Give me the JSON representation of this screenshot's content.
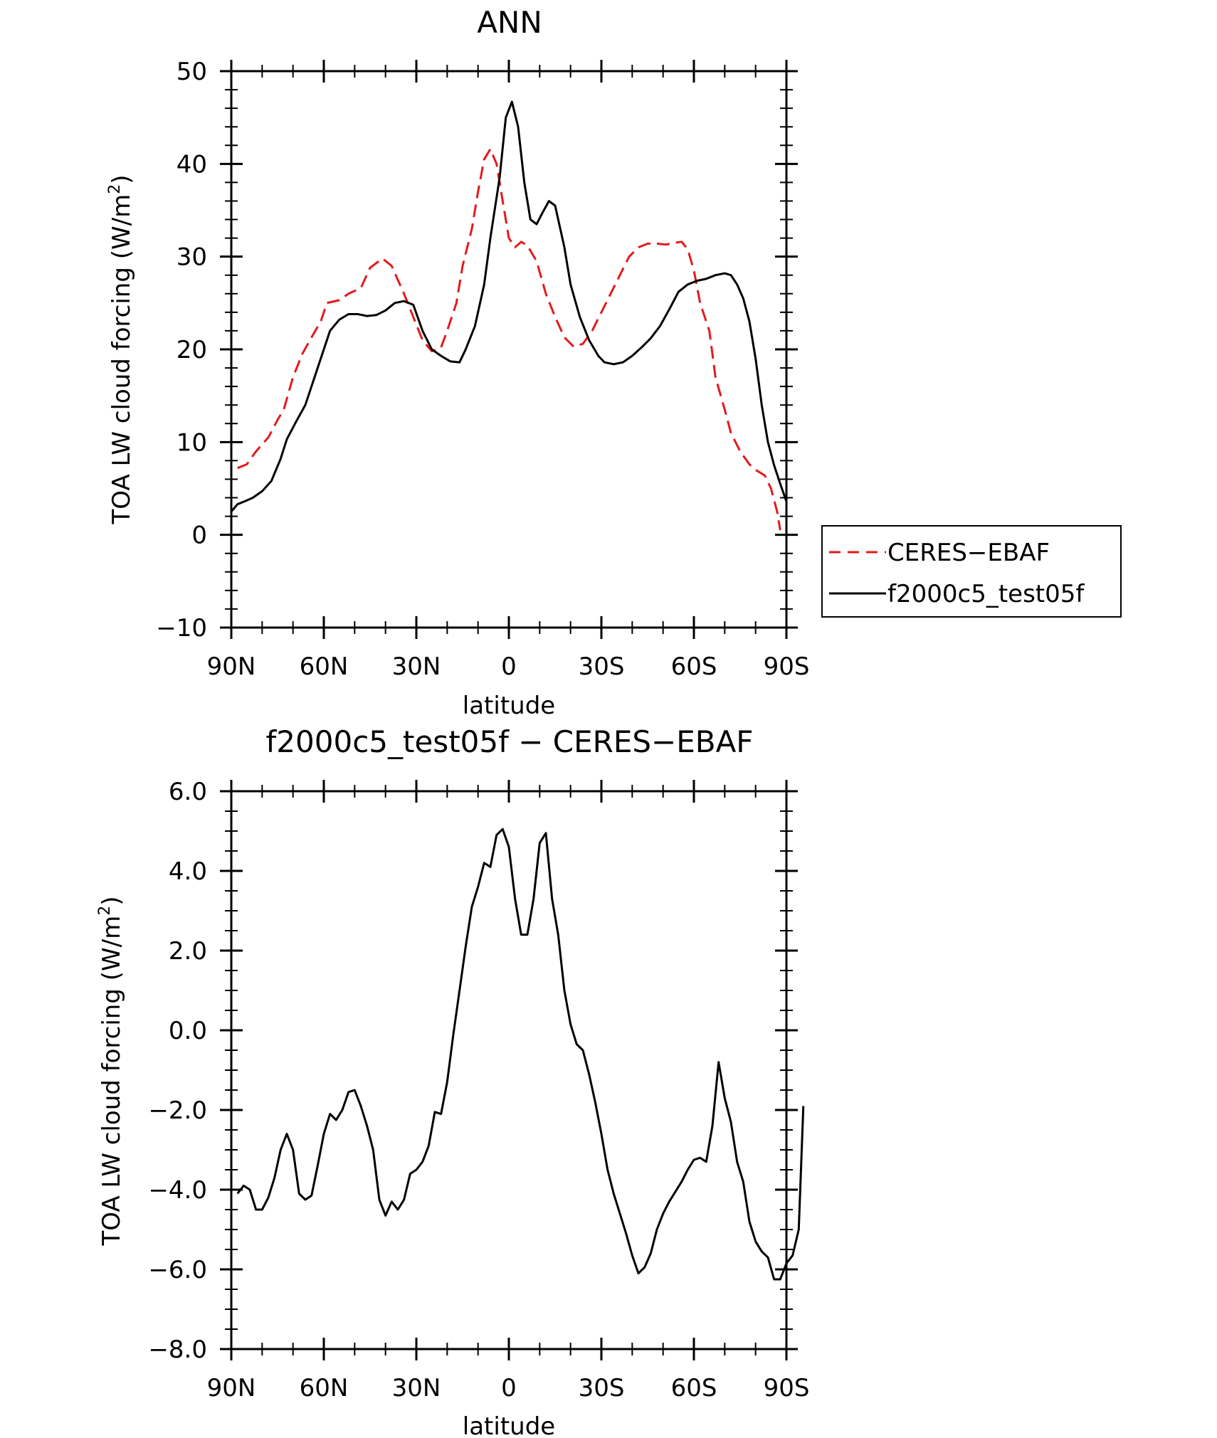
{
  "chart_data": [
    {
      "type": "line",
      "title": "ANN",
      "xlabel": "latitude",
      "ylabel": "TOA LW cloud forcing (W/m",
      "ylabel_sup": "2",
      "ylabel_end": ")",
      "xlim": [
        90,
        -90
      ],
      "ylim": [
        -10,
        50
      ],
      "xticks": [
        90,
        60,
        30,
        0,
        -30,
        -60,
        -90
      ],
      "xtick_labels": [
        "90N",
        "60N",
        "30N",
        "0",
        "30S",
        "60S",
        "90S"
      ],
      "yticks": [
        -10,
        0,
        10,
        20,
        30,
        40,
        50
      ],
      "ytick_labels": [
        "−10",
        "0",
        "10",
        "20",
        "30",
        "40",
        "50"
      ],
      "legend_position": "right",
      "series": [
        {
          "name": "CERES−EBAF",
          "color": "#e41a1c",
          "dash": "dashed",
          "points": [
            [
              88,
              7.2
            ],
            [
              85,
              7.6
            ],
            [
              82,
              9.0
            ],
            [
              78,
              10.5
            ],
            [
              75,
              12.4
            ],
            [
              73,
              13.5
            ],
            [
              70,
              17.0
            ],
            [
              67,
              19.5
            ],
            [
              64,
              21.3
            ],
            [
              61,
              23.0
            ],
            [
              59,
              25.0
            ],
            [
              55,
              25.3
            ],
            [
              52,
              26.0
            ],
            [
              48,
              26.6
            ],
            [
              45,
              28.8
            ],
            [
              41,
              29.8
            ],
            [
              38,
              29.0
            ],
            [
              34,
              26.0
            ],
            [
              31,
              23.5
            ],
            [
              28,
              21.0
            ],
            [
              25,
              19.8
            ],
            [
              22,
              20.2
            ],
            [
              20,
              22.0
            ],
            [
              17,
              25.0
            ],
            [
              15,
              29.0
            ],
            [
              12,
              33.0
            ],
            [
              10,
              37.0
            ],
            [
              8,
              40.5
            ],
            [
              6,
              41.6
            ],
            [
              4,
              40.0
            ],
            [
              2,
              36.0
            ],
            [
              0,
              32.0
            ],
            [
              -2,
              31.0
            ],
            [
              -4,
              31.6
            ],
            [
              -6,
              31.2
            ],
            [
              -9,
              29.5
            ],
            [
              -12,
              26.0
            ],
            [
              -15,
              23.5
            ],
            [
              -18,
              21.3
            ],
            [
              -21,
              20.3
            ],
            [
              -24,
              20.6
            ],
            [
              -27,
              22.0
            ],
            [
              -30,
              24.0
            ],
            [
              -33,
              26.0
            ],
            [
              -36,
              28.0
            ],
            [
              -39,
              30.0
            ],
            [
              -42,
              31.0
            ],
            [
              -45,
              31.4
            ],
            [
              -48,
              31.4
            ],
            [
              -51,
              31.3
            ],
            [
              -54,
              31.5
            ],
            [
              -56,
              31.6
            ],
            [
              -58,
              30.8
            ],
            [
              -60,
              28.5
            ],
            [
              -62,
              25.0
            ],
            [
              -65,
              22.0
            ],
            [
              -67,
              17.0
            ],
            [
              -70,
              13.5
            ],
            [
              -72,
              11.0
            ],
            [
              -75,
              9.0
            ],
            [
              -78,
              7.6
            ],
            [
              -80,
              7.0
            ],
            [
              -83,
              6.4
            ],
            [
              -85,
              5.0
            ],
            [
              -87,
              2.5
            ],
            [
              -88,
              0.5
            ]
          ]
        },
        {
          "name": "f2000c5_test05f",
          "color": "#000000",
          "dash": "solid",
          "points": [
            [
              90,
              2.5
            ],
            [
              88,
              3.3
            ],
            [
              85,
              3.7
            ],
            [
              83,
              4.0
            ],
            [
              80,
              4.7
            ],
            [
              77,
              5.8
            ],
            [
              74,
              8.2
            ],
            [
              72,
              10.3
            ],
            [
              69,
              12.2
            ],
            [
              66,
              14.0
            ],
            [
              63,
              17.0
            ],
            [
              60,
              20.0
            ],
            [
              58,
              22.0
            ],
            [
              55,
              23.2
            ],
            [
              52,
              23.8
            ],
            [
              49,
              23.8
            ],
            [
              46,
              23.6
            ],
            [
              43,
              23.7
            ],
            [
              40,
              24.2
            ],
            [
              37,
              25.0
            ],
            [
              34,
              25.2
            ],
            [
              31,
              24.8
            ],
            [
              28,
              22.0
            ],
            [
              25,
              20.0
            ],
            [
              22,
              19.3
            ],
            [
              19,
              18.7
            ],
            [
              16,
              18.6
            ],
            [
              14,
              20.0
            ],
            [
              11,
              22.5
            ],
            [
              8,
              27.0
            ],
            [
              6,
              32.0
            ],
            [
              3,
              38.5
            ],
            [
              1,
              45.0
            ],
            [
              -1,
              46.7
            ],
            [
              -3,
              44.0
            ],
            [
              -5,
              38.0
            ],
            [
              -7,
              34.0
            ],
            [
              -9,
              33.5
            ],
            [
              -11,
              34.8
            ],
            [
              -13,
              36.0
            ],
            [
              -15,
              35.5
            ],
            [
              -18,
              31.0
            ],
            [
              -20,
              27.0
            ],
            [
              -23,
              23.5
            ],
            [
              -26,
              21.0
            ],
            [
              -29,
              19.3
            ],
            [
              -31,
              18.6
            ],
            [
              -34,
              18.4
            ],
            [
              -37,
              18.6
            ],
            [
              -40,
              19.3
            ],
            [
              -43,
              20.2
            ],
            [
              -46,
              21.2
            ],
            [
              -49,
              22.5
            ],
            [
              -52,
              24.3
            ],
            [
              -55,
              26.2
            ],
            [
              -58,
              27.0
            ],
            [
              -61,
              27.4
            ],
            [
              -64,
              27.6
            ],
            [
              -67,
              28.0
            ],
            [
              -70,
              28.2
            ],
            [
              -72,
              28.0
            ],
            [
              -74,
              27.0
            ],
            [
              -76,
              25.5
            ],
            [
              -78,
              23.0
            ],
            [
              -80,
              19.0
            ],
            [
              -82,
              14.0
            ],
            [
              -84,
              10.0
            ],
            [
              -86,
              7.5
            ],
            [
              -88,
              5.5
            ],
            [
              -90,
              3.6
            ]
          ]
        }
      ]
    },
    {
      "type": "line",
      "title": "f2000c5_test05f − CERES−EBAF",
      "xlabel": "latitude",
      "ylabel": "TOA LW cloud forcing (W/m",
      "ylabel_sup": "2",
      "ylabel_end": ")",
      "xlim": [
        90,
        -90
      ],
      "ylim": [
        -8,
        6
      ],
      "xticks": [
        90,
        60,
        30,
        0,
        -30,
        -60,
        -90
      ],
      "xtick_labels": [
        "90N",
        "60N",
        "30N",
        "0",
        "30S",
        "60S",
        "90S"
      ],
      "yticks": [
        -8,
        -6,
        -4,
        -2,
        0,
        2,
        4,
        6
      ],
      "ytick_labels": [
        "−8.0",
        "−6.0",
        "−4.0",
        "−2.0",
        "0.0",
        "2.0",
        "4.0",
        "6.0"
      ],
      "series": [
        {
          "name": "",
          "color": "#000000",
          "dash": "solid",
          "points": [
            [
              88,
              -4.1
            ],
            [
              86,
              -3.9
            ],
            [
              84,
              -4.0
            ],
            [
              82,
              -4.5
            ],
            [
              80,
              -4.5
            ],
            [
              78,
              -4.2
            ],
            [
              76,
              -3.7
            ],
            [
              74,
              -3.0
            ],
            [
              72,
              -2.6
            ],
            [
              70,
              -3.0
            ],
            [
              68,
              -4.1
            ],
            [
              66,
              -4.25
            ],
            [
              64,
              -4.15
            ],
            [
              62,
              -3.4
            ],
            [
              60,
              -2.6
            ],
            [
              58,
              -2.1
            ],
            [
              56,
              -2.25
            ],
            [
              54,
              -2.0
            ],
            [
              52,
              -1.55
            ],
            [
              50,
              -1.5
            ],
            [
              48,
              -1.9
            ],
            [
              46,
              -2.4
            ],
            [
              44,
              -3.0
            ],
            [
              42,
              -4.25
            ],
            [
              40,
              -4.65
            ],
            [
              38,
              -4.3
            ],
            [
              36,
              -4.5
            ],
            [
              34,
              -4.25
            ],
            [
              32,
              -3.6
            ],
            [
              30,
              -3.5
            ],
            [
              28,
              -3.3
            ],
            [
              26,
              -2.9
            ],
            [
              24,
              -2.05
            ],
            [
              22,
              -2.1
            ],
            [
              20,
              -1.3
            ],
            [
              18,
              -0.1
            ],
            [
              16,
              1.0
            ],
            [
              14,
              2.1
            ],
            [
              12,
              3.1
            ],
            [
              10,
              3.6
            ],
            [
              8,
              4.2
            ],
            [
              6,
              4.1
            ],
            [
              4,
              4.9
            ],
            [
              2,
              5.05
            ],
            [
              0,
              4.6
            ],
            [
              -2,
              3.3
            ],
            [
              -4,
              2.4
            ],
            [
              -6,
              2.4
            ],
            [
              -8,
              3.3
            ],
            [
              -10,
              4.7
            ],
            [
              -12,
              4.95
            ],
            [
              -14,
              3.3
            ],
            [
              -16,
              2.4
            ],
            [
              -18,
              1.0
            ],
            [
              -20,
              0.15
            ],
            [
              -22,
              -0.35
            ],
            [
              -24,
              -0.5
            ],
            [
              -26,
              -1.1
            ],
            [
              -28,
              -1.8
            ],
            [
              -30,
              -2.6
            ],
            [
              -32,
              -3.5
            ],
            [
              -34,
              -4.1
            ],
            [
              -36,
              -4.6
            ],
            [
              -38,
              -5.1
            ],
            [
              -40,
              -5.65
            ],
            [
              -42,
              -6.1
            ],
            [
              -44,
              -5.95
            ],
            [
              -46,
              -5.6
            ],
            [
              -48,
              -5.0
            ],
            [
              -50,
              -4.6
            ],
            [
              -52,
              -4.3
            ],
            [
              -54,
              -4.05
            ],
            [
              -56,
              -3.8
            ],
            [
              -58,
              -3.5
            ],
            [
              -60,
              -3.25
            ],
            [
              -62,
              -3.2
            ],
            [
              -64,
              -3.3
            ],
            [
              -66,
              -2.4
            ],
            [
              -68,
              -0.8
            ],
            [
              -70,
              -1.7
            ],
            [
              -72,
              -2.3
            ],
            [
              -74,
              -3.3
            ],
            [
              -76,
              -3.8
            ],
            [
              -78,
              -4.8
            ],
            [
              -80,
              -5.3
            ],
            [
              -82,
              -5.55
            ],
            [
              -84,
              -5.7
            ],
            [
              -86,
              -6.25
            ],
            [
              -88,
              -6.25
            ],
            [
              -90,
              -5.85
            ],
            [
              -92,
              -5.65
            ],
            [
              -94,
              -5.0
            ],
            [
              -95.5,
              -1.9
            ]
          ]
        }
      ]
    }
  ]
}
